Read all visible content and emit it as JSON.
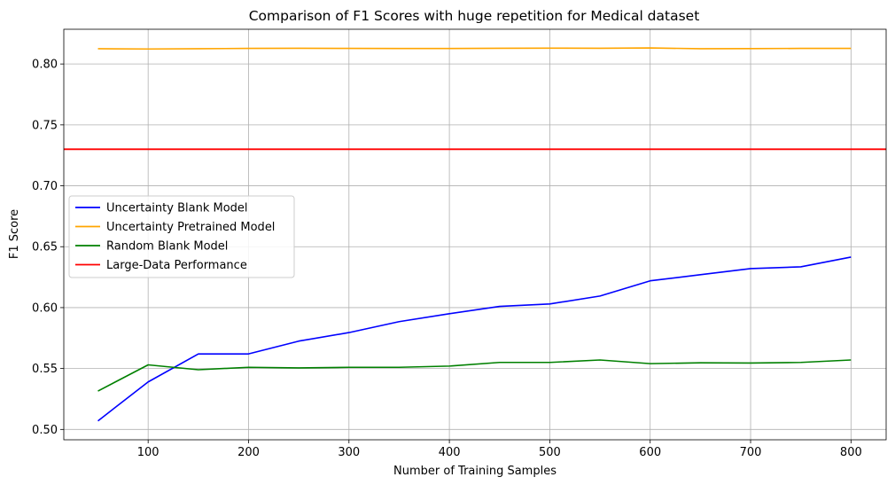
{
  "chart_data": {
    "type": "line",
    "title": "Comparison of F1 Scores with huge repetition for Medical dataset",
    "xlabel": "Number of Training Samples",
    "ylabel": "F1 Score",
    "xlim": [
      16,
      835
    ],
    "ylim": [
      0.4915,
      0.8285
    ],
    "xticks": [
      100,
      200,
      300,
      400,
      500,
      600,
      700,
      800
    ],
    "yticks": [
      0.5,
      0.55,
      0.6,
      0.65,
      0.7,
      0.75,
      0.8
    ],
    "ytick_labels": [
      "0.50",
      "0.55",
      "0.60",
      "0.65",
      "0.70",
      "0.75",
      "0.80"
    ],
    "grid": true,
    "legend_position": "center-left",
    "x": [
      50,
      100,
      150,
      200,
      250,
      300,
      350,
      400,
      450,
      500,
      550,
      600,
      650,
      700,
      750,
      800
    ],
    "series": [
      {
        "name": "Uncertainty Blank Model",
        "color": "#0000ff",
        "values": [
          0.507,
          0.539,
          0.562,
          0.562,
          0.5725,
          0.5795,
          0.5885,
          0.595,
          0.601,
          0.603,
          0.6095,
          0.622,
          0.627,
          0.632,
          0.6335,
          0.6415
        ]
      },
      {
        "name": "Uncertainty Pretrained Model",
        "color": "#ffa500",
        "values": [
          0.8125,
          0.8123,
          0.8125,
          0.8128,
          0.8129,
          0.8128,
          0.8127,
          0.8127,
          0.8129,
          0.813,
          0.8129,
          0.8132,
          0.8125,
          0.8126,
          0.8128,
          0.8128
        ]
      },
      {
        "name": "Random Blank Model",
        "color": "#008000",
        "values": [
          0.5315,
          0.553,
          0.549,
          0.551,
          0.5505,
          0.551,
          0.551,
          0.552,
          0.555,
          0.555,
          0.557,
          0.554,
          0.5547,
          0.5545,
          0.555,
          0.557
        ]
      }
    ],
    "hlines": [
      {
        "name": "Large-Data Performance",
        "color": "#ff0000",
        "y": 0.73
      }
    ]
  }
}
